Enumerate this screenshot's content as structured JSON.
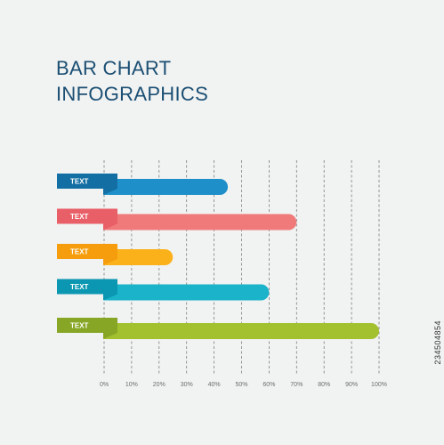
{
  "title": {
    "line1": "BAR CHART",
    "line2": "INFOGRAPHICS"
  },
  "stamp": "234504854",
  "chart_data": {
    "type": "bar",
    "orientation": "horizontal",
    "categories": [
      "TEXT",
      "TEXT",
      "TEXT",
      "TEXT",
      "TEXT"
    ],
    "values": [
      45,
      70,
      25,
      60,
      100
    ],
    "colors": [
      "#1e8fc8",
      "#f07a7a",
      "#fbb21a",
      "#1ab3c9",
      "#a3c12f"
    ],
    "label_colors": [
      "#136fa3",
      "#e95f67",
      "#f59d0d",
      "#0b97b1",
      "#88a626"
    ],
    "xlim": [
      0,
      100
    ],
    "x_ticks": [
      "0%",
      "10%",
      "20%",
      "30%",
      "40%",
      "50%",
      "60%",
      "70%",
      "80%",
      "90%",
      "100%"
    ],
    "grid": "vertical-dashed",
    "title": "BAR CHART INFOGRAPHICS"
  }
}
